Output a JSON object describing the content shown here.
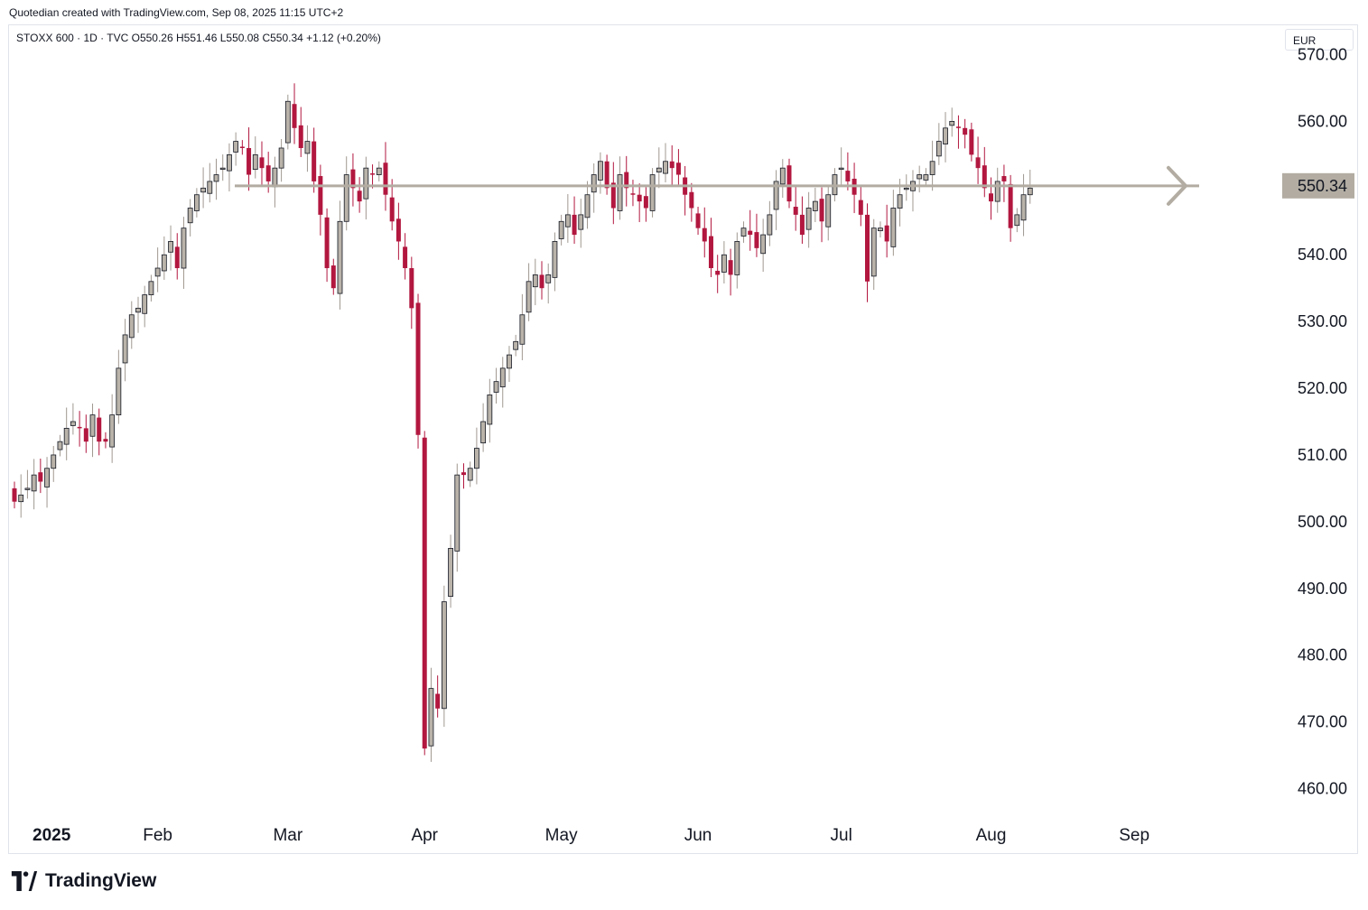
{
  "header": {
    "caption": "Quotedian created with TradingView.com, Sep 08, 2025 11:15 UTC+2"
  },
  "legend": {
    "symbol_line": "STOXX 600 · 1D · TVC",
    "open": "O550.26",
    "high": "H551.46",
    "low": "L550.08",
    "close": "C550.34",
    "change": "+1.12 (+0.20%)"
  },
  "axis": {
    "currency": "EUR"
  },
  "footer": {
    "brand": "TradingView"
  },
  "colors": {
    "up": "#a09890",
    "down": "#b2173f",
    "level_line": "#b2aca2",
    "last_price_bg": "#b2aca2"
  },
  "chart_data": {
    "type": "candlestick",
    "title": "",
    "y_ticks": [
      "570.00",
      "560.00",
      "550.00",
      "540.00",
      "530.00",
      "520.00",
      "510.00",
      "500.00",
      "490.00",
      "480.00",
      "470.00",
      "460.00"
    ],
    "y_tick_values": [
      570,
      560,
      550,
      540,
      530,
      520,
      510,
      500,
      490,
      480,
      470,
      460
    ],
    "ylim": [
      455.6,
      574.4
    ],
    "x_ticks": [
      {
        "label": "2025",
        "day": 0
      },
      {
        "label": "Feb",
        "day": 22
      },
      {
        "label": "Mar",
        "day": 42
      },
      {
        "label": "Apr",
        "day": 63
      },
      {
        "label": "May",
        "day": 84
      },
      {
        "label": "Jun",
        "day": 105
      },
      {
        "label": "Jul",
        "day": 127
      },
      {
        "label": "Aug",
        "day": 150
      },
      {
        "label": "Sep",
        "day": 172
      }
    ],
    "horizontal_level": 550.34,
    "last_price": "550.34",
    "grid": false,
    "series": [
      {
        "values_close": [
          503,
          504,
          505,
          507,
          506,
          508,
          510,
          512,
          514,
          515,
          514,
          512,
          516,
          512,
          512,
          516,
          523,
          528,
          531,
          532,
          534,
          536,
          538,
          540,
          542,
          538,
          544,
          547,
          549,
          550,
          551,
          552,
          553,
          555,
          557,
          556,
          552,
          555,
          553,
          551,
          553,
          556,
          563,
          559,
          556,
          557,
          551,
          546,
          538,
          535,
          545,
          552,
          550,
          548,
          553,
          552,
          553,
          549,
          545,
          542,
          538,
          532,
          513,
          466,
          475,
          472,
          488,
          496,
          507,
          507,
          508,
          511,
          515,
          519,
          521,
          523,
          525,
          527,
          531,
          536,
          537,
          535,
          537,
          542,
          545,
          546,
          543,
          546,
          549,
          552,
          554,
          550,
          547,
          552,
          550,
          549,
          548,
          547,
          552,
          553,
          554,
          553,
          552,
          549,
          547,
          544,
          542,
          538,
          537,
          540,
          537,
          542,
          544,
          543,
          541,
          543,
          546,
          551,
          553,
          548,
          546,
          543,
          547,
          548,
          545,
          549,
          552,
          553,
          551,
          549,
          546,
          536,
          544,
          544,
          542,
          547,
          549,
          550,
          551,
          552,
          552,
          554,
          557,
          559,
          560,
          559,
          558,
          555,
          553,
          550,
          548,
          551,
          551,
          544,
          546,
          549,
          550
        ]
      }
    ]
  }
}
